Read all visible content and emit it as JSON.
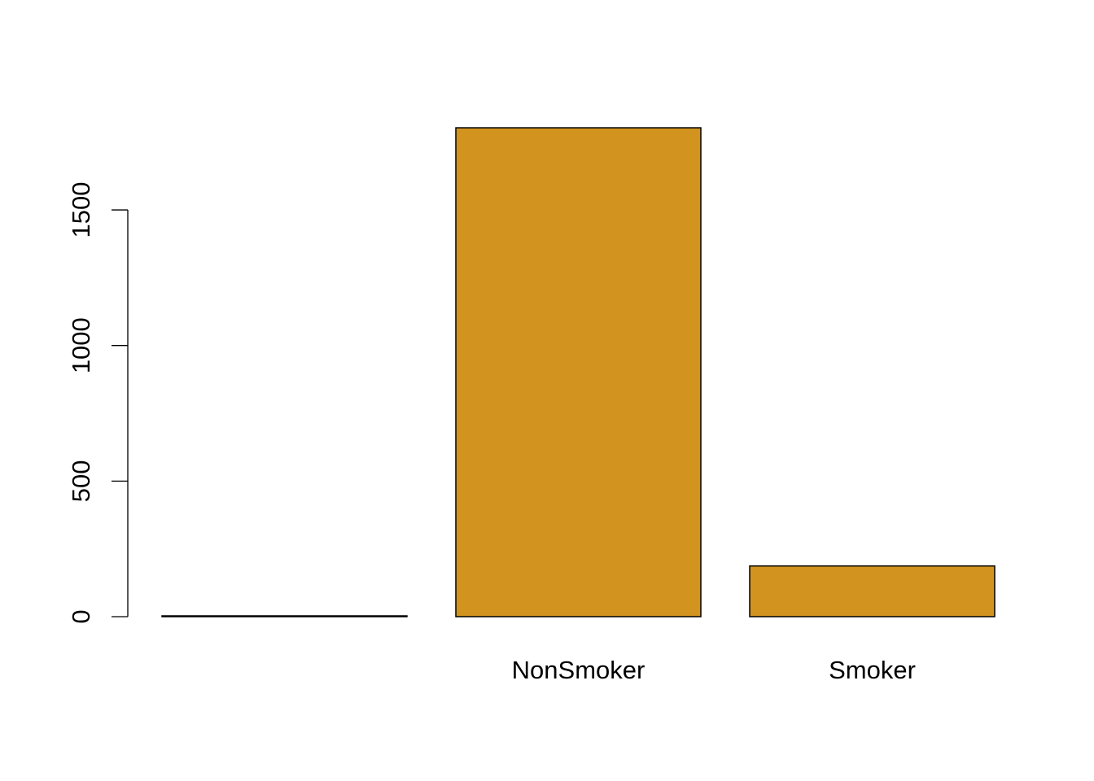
{
  "chart_data": {
    "type": "bar",
    "categories": [
      "",
      "NonSmoker",
      "Smoker"
    ],
    "values": [
      3,
      1803,
      187
    ],
    "title": "",
    "xlabel": "",
    "ylabel": "",
    "ylim": [
      0,
      1800
    ],
    "yticks": [
      0,
      500,
      1000,
      1500
    ],
    "ytick_labels": [
      "0",
      "500",
      "1000",
      "1500"
    ],
    "grid": false,
    "legend": "none",
    "bar_color": "#D2941E",
    "border_color": "#000000"
  }
}
